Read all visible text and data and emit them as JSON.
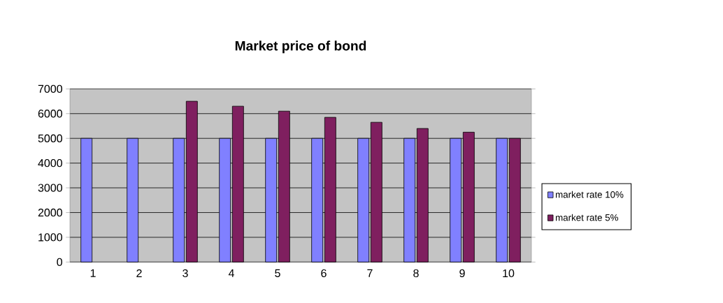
{
  "chart_data": {
    "type": "bar",
    "title": "Market price of bond",
    "categories": [
      "1",
      "2",
      "3",
      "4",
      "5",
      "6",
      "7",
      "8",
      "9",
      "10"
    ],
    "series": [
      {
        "name": "market rate 10%",
        "color": "#8080ff",
        "values": [
          5000,
          5000,
          5000,
          5000,
          5000,
          5000,
          5000,
          5000,
          5000,
          5000
        ]
      },
      {
        "name": "market rate 5%",
        "color": "#7f1f5f",
        "values": [
          null,
          null,
          6500,
          6300,
          6100,
          5850,
          5650,
          5400,
          5250,
          5000
        ]
      }
    ],
    "ylim": [
      0,
      7000
    ],
    "yticks": [
      0,
      1000,
      2000,
      3000,
      4000,
      5000,
      6000,
      7000
    ],
    "grid": "y",
    "legend": "right"
  }
}
